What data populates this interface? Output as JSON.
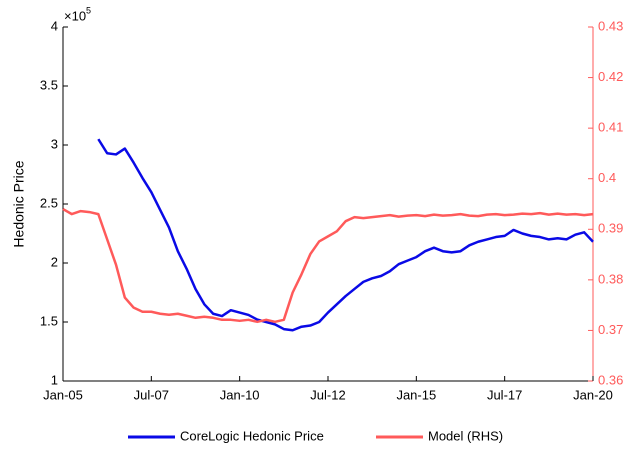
{
  "chart_data": {
    "type": "line",
    "y_label": "Hedonic Price",
    "y_multiplier": "×10",
    "y_multiplier_exponent": "5",
    "x": [
      "Jan-05",
      "Apr-05",
      "Jul-05",
      "Oct-05",
      "Jan-06",
      "Apr-06",
      "Jul-06",
      "Oct-06",
      "Jan-07",
      "Apr-07",
      "Jul-07",
      "Oct-07",
      "Jan-08",
      "Apr-08",
      "Jul-08",
      "Oct-08",
      "Jan-09",
      "Apr-09",
      "Jul-09",
      "Oct-09",
      "Jan-10",
      "Apr-10",
      "Jul-10",
      "Oct-10",
      "Jan-11",
      "Apr-11",
      "Jul-11",
      "Oct-11",
      "Jan-12",
      "Apr-12",
      "Jul-12",
      "Oct-12",
      "Jan-13",
      "Apr-13",
      "Jul-13",
      "Oct-13",
      "Jan-14",
      "Apr-14",
      "Jul-14",
      "Oct-14",
      "Jan-15",
      "Apr-15",
      "Jul-15",
      "Oct-15",
      "Jan-16",
      "Apr-16",
      "Jul-16",
      "Oct-16",
      "Jan-17",
      "Apr-17",
      "Jul-17",
      "Oct-17",
      "Jan-18",
      "Apr-18",
      "Jul-18",
      "Oct-18",
      "Jan-19",
      "Apr-19",
      "Jul-19",
      "Oct-19",
      "Jan-20"
    ],
    "series": [
      {
        "name": "CoreLogic Hedonic Price",
        "color": "#0a0ae6",
        "axis": "y",
        "values": [
          null,
          null,
          null,
          null,
          3.05,
          2.93,
          2.92,
          2.97,
          2.85,
          2.72,
          2.6,
          2.45,
          2.3,
          2.1,
          1.95,
          1.78,
          1.65,
          1.57,
          1.55,
          1.6,
          1.58,
          1.56,
          1.52,
          1.5,
          1.48,
          1.44,
          1.43,
          1.46,
          1.47,
          1.5,
          1.58,
          1.65,
          1.72,
          1.78,
          1.84,
          1.87,
          1.89,
          1.93,
          1.99,
          2.02,
          2.05,
          2.1,
          2.13,
          2.1,
          2.09,
          2.1,
          2.15,
          2.18,
          2.2,
          2.22,
          2.23,
          2.28,
          2.25,
          2.23,
          2.22,
          2.2,
          2.21,
          2.2,
          2.24,
          2.26,
          2.18
        ]
      },
      {
        "name": "Model (RHS)",
        "color": "#ff5a5a",
        "axis": "y2",
        "values": [
          0.394,
          0.393,
          0.3936,
          0.3934,
          0.393,
          0.388,
          0.383,
          0.3765,
          0.3745,
          0.3737,
          0.3737,
          0.3733,
          0.3731,
          0.3733,
          0.3729,
          0.3725,
          0.3727,
          0.3725,
          0.3721,
          0.3721,
          0.3719,
          0.3721,
          0.3717,
          0.3721,
          0.3717,
          0.3721,
          0.3775,
          0.3811,
          0.3851,
          0.3876,
          0.3886,
          0.3896,
          0.3916,
          0.3924,
          0.3922,
          0.3924,
          0.3926,
          0.3928,
          0.3925,
          0.3927,
          0.3928,
          0.3926,
          0.3929,
          0.3927,
          0.3928,
          0.393,
          0.3927,
          0.3926,
          0.3929,
          0.393,
          0.3928,
          0.3929,
          0.3931,
          0.393,
          0.3932,
          0.3929,
          0.3931,
          0.3929,
          0.393,
          0.3928,
          0.393
        ]
      }
    ],
    "xlim": [
      "Jan-05",
      "Jan-20"
    ],
    "xticks": [
      "Jan-05",
      "Jul-07",
      "Jan-10",
      "Jul-12",
      "Jan-15",
      "Jul-17",
      "Jan-20"
    ],
    "ylim": [
      1,
      4
    ],
    "yticks": [
      1,
      1.5,
      2,
      2.5,
      3,
      3.5,
      4
    ],
    "y2lim": [
      0.36,
      0.43
    ],
    "y2ticks": [
      0.36,
      0.37,
      0.38,
      0.39,
      0.4,
      0.41,
      0.42,
      0.43
    ],
    "y2_color": "#ff5a5a",
    "grid": false,
    "legend": "bottom"
  }
}
